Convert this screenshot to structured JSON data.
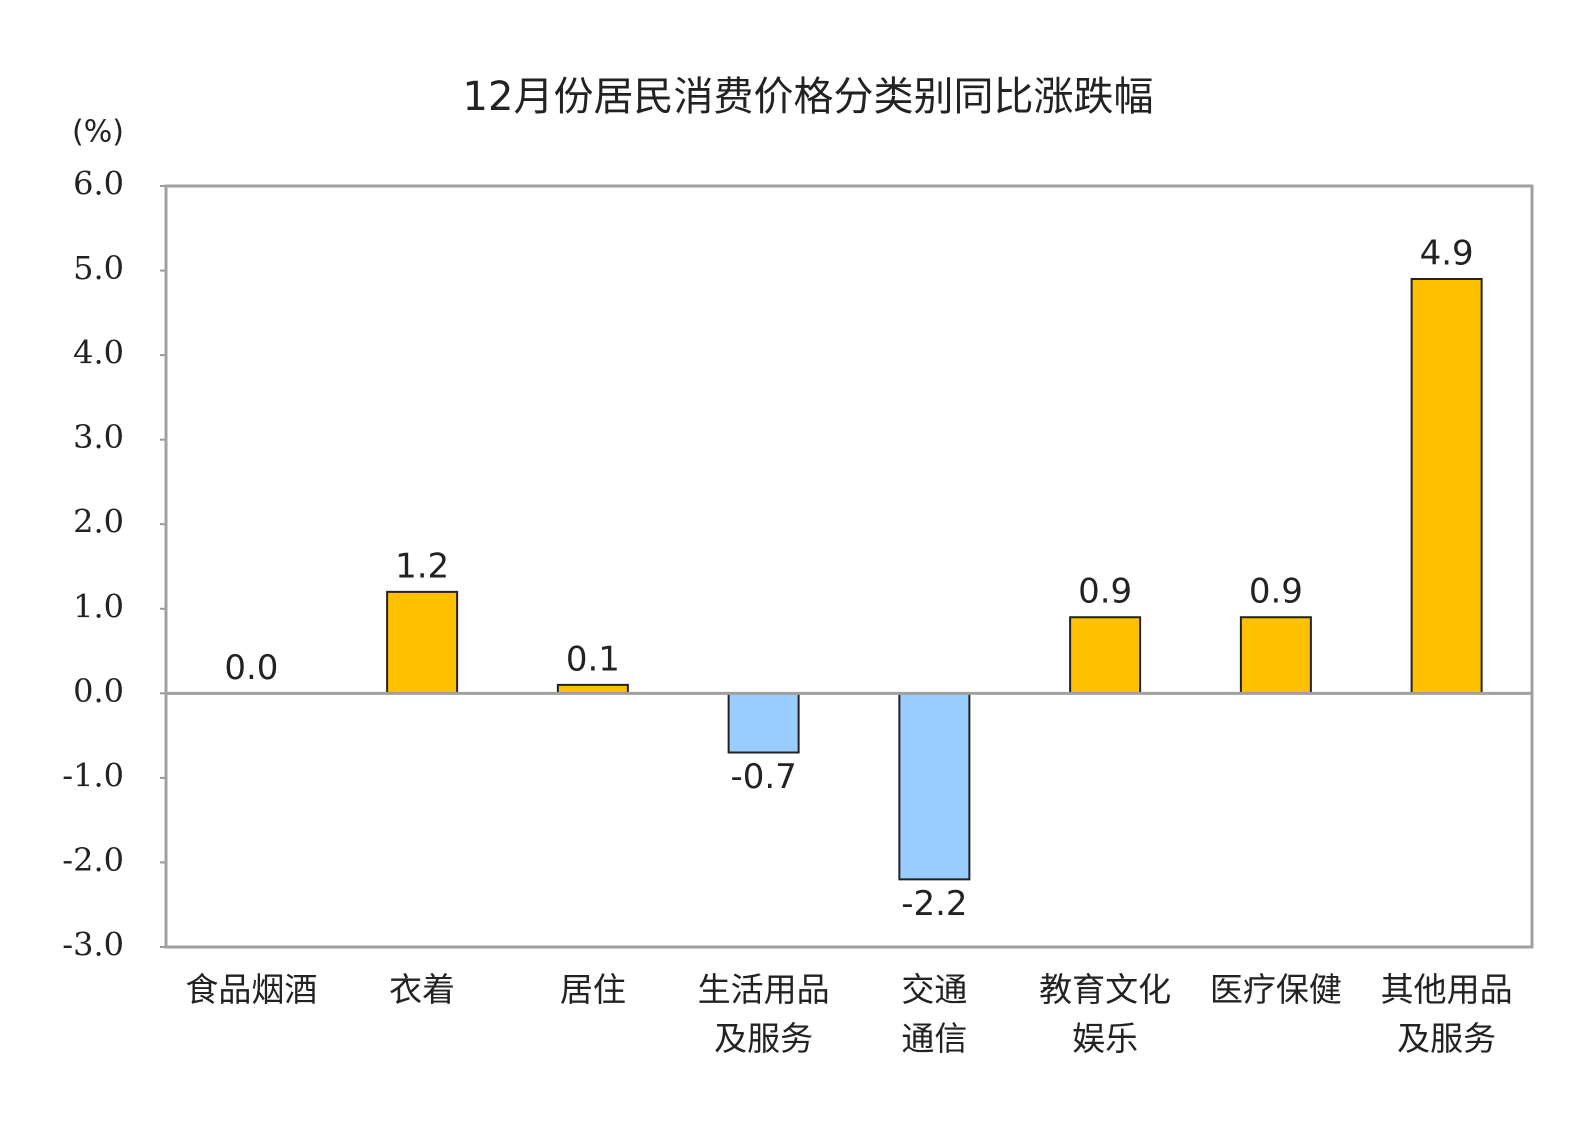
{
  "chart_data": {
    "type": "bar",
    "title": "12月份居民消费价格分类别同比涨跌幅",
    "y_label": "(%)",
    "categories": [
      "食品烟酒",
      "衣着",
      "居住",
      "生活用品\n及服务",
      "交通\n通信",
      "教育文化\n娱乐",
      "医疗保健",
      "其他用品\n及服务"
    ],
    "values": [
      0.0,
      1.2,
      0.1,
      -0.7,
      -2.2,
      0.9,
      0.9,
      4.9
    ],
    "value_labels": [
      "0.0",
      "1.2",
      "0.1",
      "-0.7",
      "-2.2",
      "0.9",
      "0.9",
      "4.9"
    ],
    "colors": [
      "#FFC000",
      "#FFC000",
      "#FFC000",
      "#99CCFF",
      "#99CCFF",
      "#FFC000",
      "#FFC000",
      "#FFC000"
    ],
    "ylim": [
      -3,
      6
    ],
    "yticks": [
      {
        "value": -3,
        "label": "-3.0"
      },
      {
        "value": -2,
        "label": "-2.0"
      },
      {
        "value": -1,
        "label": "-1.0"
      },
      {
        "value": 0,
        "label": "0.0"
      },
      {
        "value": 1,
        "label": "1.0"
      },
      {
        "value": 2,
        "label": "2.0"
      },
      {
        "value": 3,
        "label": "3.0"
      },
      {
        "value": 4,
        "label": "4.0"
      },
      {
        "value": 5,
        "label": "5.0"
      },
      {
        "value": 6,
        "label": "6.0"
      }
    ],
    "grid": false
  }
}
